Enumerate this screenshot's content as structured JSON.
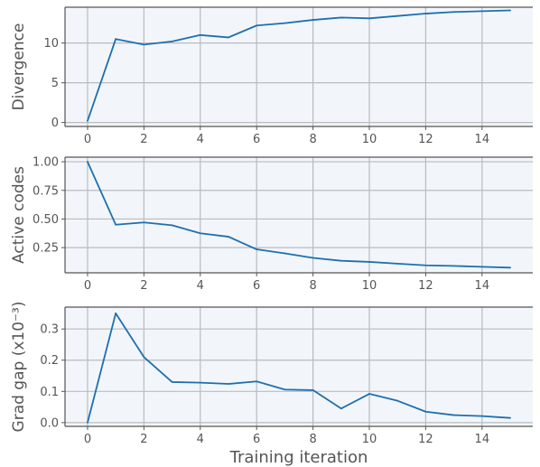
{
  "chart_data": [
    {
      "type": "line",
      "ylabel": "Divergence",
      "xlabel": "",
      "xlim": [
        -0.8,
        15.8
      ],
      "ylim": [
        -0.5,
        14.5
      ],
      "xticks": [
        0,
        2,
        4,
        6,
        8,
        10,
        12,
        14
      ],
      "yticks": [
        0,
        5,
        10
      ],
      "ytick_labels": [
        "0",
        "5",
        "10"
      ],
      "grid": true,
      "x": [
        0,
        1,
        2,
        3,
        4,
        5,
        6,
        7,
        8,
        9,
        10,
        11,
        12,
        13,
        14,
        15
      ],
      "series": [
        {
          "values": [
            0.2,
            10.5,
            9.8,
            10.2,
            11.0,
            10.7,
            12.2,
            12.5,
            12.9,
            13.2,
            13.1,
            13.4,
            13.7,
            13.9,
            14.0,
            14.1
          ]
        }
      ]
    },
    {
      "type": "line",
      "ylabel": "Active codes",
      "xlabel": "",
      "xlim": [
        -0.8,
        15.8
      ],
      "ylim": [
        0.03,
        1.04
      ],
      "xticks": [
        0,
        2,
        4,
        6,
        8,
        10,
        12,
        14
      ],
      "yticks": [
        0.25,
        0.5,
        0.75,
        1.0
      ],
      "ytick_labels": [
        "0.25",
        "0.50",
        "0.75",
        "1.00"
      ],
      "grid": true,
      "x": [
        0,
        1,
        2,
        3,
        4,
        5,
        6,
        7,
        8,
        9,
        10,
        11,
        12,
        13,
        14,
        15
      ],
      "series": [
        {
          "values": [
            1.0,
            0.45,
            0.47,
            0.445,
            0.375,
            0.345,
            0.235,
            0.2,
            0.16,
            0.135,
            0.125,
            0.11,
            0.095,
            0.09,
            0.082,
            0.075
          ]
        }
      ]
    },
    {
      "type": "line",
      "ylabel": "Grad gap (x10⁻³)",
      "xlabel": "Training iteration",
      "xlim": [
        -0.8,
        15.8
      ],
      "ylim": [
        -0.012,
        0.37
      ],
      "xticks": [
        0,
        2,
        4,
        6,
        8,
        10,
        12,
        14
      ],
      "yticks": [
        0.0,
        0.1,
        0.2,
        0.3
      ],
      "ytick_labels": [
        "0.0",
        "0.1",
        "0.2",
        "0.3"
      ],
      "grid": true,
      "x": [
        0,
        1,
        2,
        3,
        4,
        5,
        6,
        7,
        8,
        9,
        10,
        11,
        12,
        13,
        14,
        15
      ],
      "series": [
        {
          "values": [
            0.0,
            0.35,
            0.21,
            0.13,
            0.128,
            0.124,
            0.132,
            0.106,
            0.104,
            0.045,
            0.092,
            0.07,
            0.035,
            0.024,
            0.021,
            0.015
          ]
        }
      ]
    }
  ],
  "style": {
    "line_color": "#1f6fae",
    "plot_bg": "#f2f6fa",
    "grid_color": "#b8bcc0",
    "spine_color": "#555555",
    "text_color": "#555555"
  }
}
